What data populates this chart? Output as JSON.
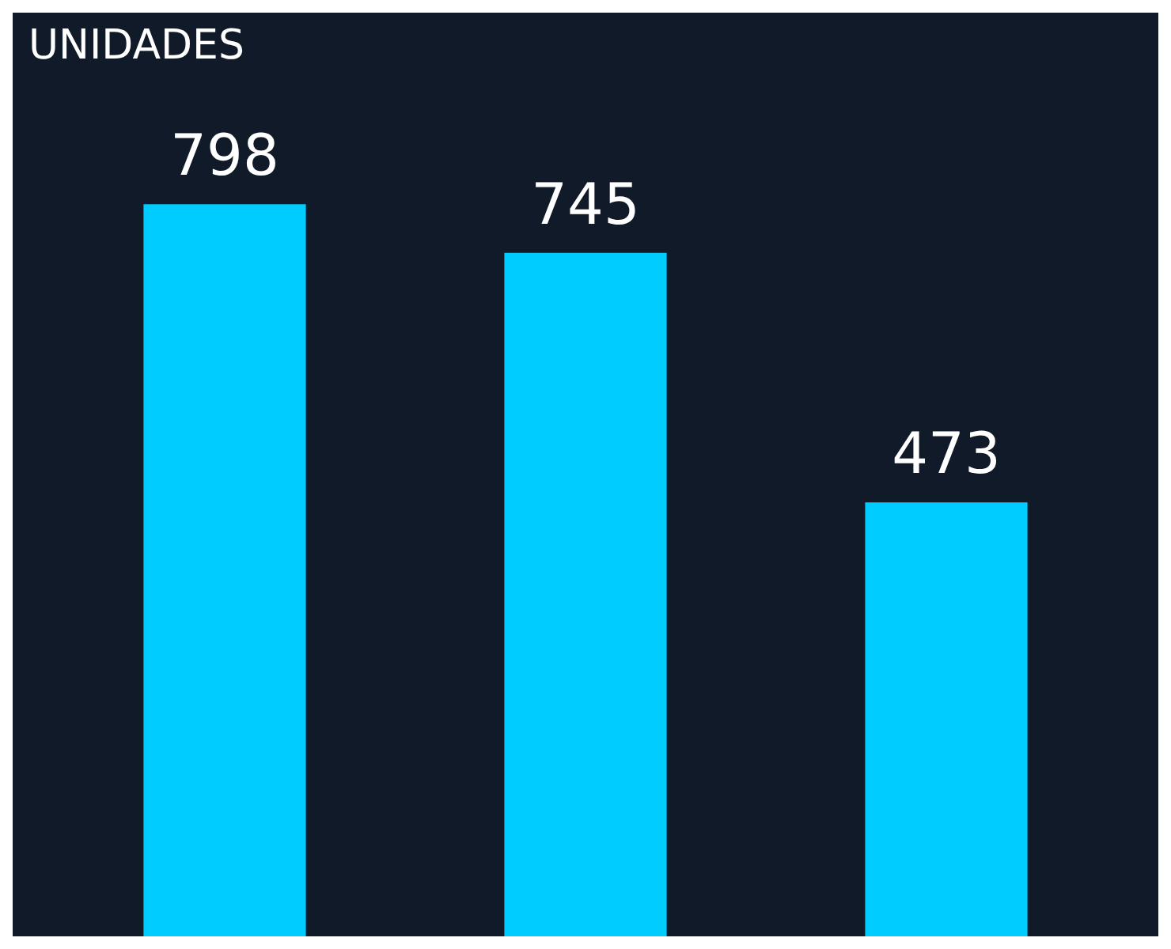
{
  "chart_data": {
    "type": "bar",
    "ylabel": "UNIDADES",
    "categories": [
      null,
      null,
      null
    ],
    "values": [
      798,
      745,
      473
    ],
    "color": "#00ccff",
    "data_labels": true
  }
}
